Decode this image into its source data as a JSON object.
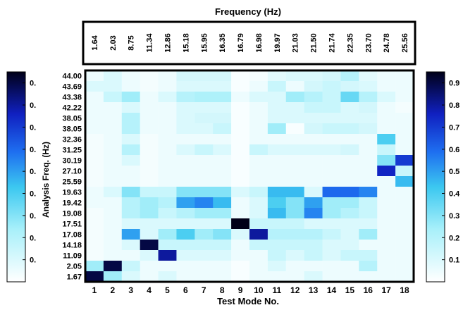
{
  "chart_data": {
    "type": "heatmap",
    "title": "Frequency (Hz)",
    "xlabel": "Test Mode No.",
    "ylabel": "Analysis Freq. (Hz)",
    "x_categories": [
      "1",
      "2",
      "3",
      "4",
      "5",
      "6",
      "7",
      "8",
      "9",
      "10",
      "11",
      "12",
      "13",
      "14",
      "15",
      "16",
      "17",
      "18"
    ],
    "top_categories": [
      "1.64",
      "2.03",
      "8.75",
      "11.34",
      "12.86",
      "15.18",
      "15.95",
      "16.35",
      "16.79",
      "16.98",
      "19.97",
      "21.03",
      "21.50",
      "21.74",
      "22.35",
      "23.70",
      "24.78",
      "25.56"
    ],
    "y_categories": [
      "44.00",
      "43.69",
      "43.38",
      "42.22",
      "38.05",
      "38.05",
      "32.36",
      "31.25",
      "30.19",
      "27.10",
      "25.59",
      "19.63",
      "19.42",
      "19.08",
      "17.51",
      "17.08",
      "14.18",
      "11.09",
      "2.05",
      "1.67"
    ],
    "colorbar_right": {
      "ticks": [
        "0.1",
        "0.2",
        "0.3",
        "0.4",
        "0.5",
        "0.6",
        "0.7",
        "0.8",
        "0.9"
      ],
      "range": [
        0,
        0.95
      ]
    },
    "colorbar_left": {
      "ticks": [
        "0.",
        "0.",
        "0.",
        "0.",
        "0.",
        "0.",
        "0.",
        "0.",
        "0."
      ]
    },
    "values": [
      [
        0.05,
        0.1,
        0.05,
        0.03,
        0.05,
        0.12,
        0.12,
        0.12,
        0.02,
        0.03,
        0.08,
        0.1,
        0.1,
        0.12,
        0.2,
        0.08,
        0.05,
        0.05
      ],
      [
        0.1,
        0.1,
        0.05,
        0.03,
        0.05,
        0.1,
        0.1,
        0.1,
        0.02,
        0.05,
        0.15,
        0.05,
        0.12,
        0.15,
        0.12,
        0.1,
        0.05,
        0.05
      ],
      [
        0.05,
        0.15,
        0.25,
        0.05,
        0.1,
        0.2,
        0.22,
        0.22,
        0.05,
        0.1,
        0.1,
        0.25,
        0.2,
        0.15,
        0.35,
        0.2,
        0.1,
        0.05
      ],
      [
        0.05,
        0.05,
        0.1,
        0.05,
        0.05,
        0.1,
        0.1,
        0.1,
        0.02,
        0.05,
        0.1,
        0.1,
        0.15,
        0.15,
        0.1,
        0.12,
        0.05,
        0.03
      ],
      [
        0.05,
        0.05,
        0.2,
        0.05,
        0.05,
        0.1,
        0.12,
        0.12,
        0.02,
        0.05,
        0.1,
        0.1,
        0.1,
        0.1,
        0.1,
        0.1,
        0.05,
        0.05
      ],
      [
        0.05,
        0.05,
        0.2,
        0.05,
        0.05,
        0.1,
        0.1,
        0.15,
        0.02,
        0.05,
        0.25,
        0.02,
        0.12,
        0.15,
        0.15,
        0.12,
        0.05,
        0.05
      ],
      [
        0.03,
        0.05,
        0.1,
        0.03,
        0.05,
        0.05,
        0.05,
        0.05,
        0.02,
        0.05,
        0.05,
        0.05,
        0.05,
        0.05,
        0.05,
        0.05,
        0.4,
        0.05
      ],
      [
        0.03,
        0.05,
        0.2,
        0.03,
        0.05,
        0.1,
        0.15,
        0.1,
        0.02,
        0.15,
        0.1,
        0.1,
        0.1,
        0.1,
        0.12,
        0.05,
        0.15,
        0.05
      ],
      [
        0.03,
        0.05,
        0.1,
        0.03,
        0.05,
        0.05,
        0.05,
        0.05,
        0.02,
        0.05,
        0.05,
        0.05,
        0.05,
        0.05,
        0.05,
        0.05,
        0.3,
        0.7
      ],
      [
        0.03,
        0.05,
        0.05,
        0.03,
        0.05,
        0.05,
        0.05,
        0.05,
        0.02,
        0.05,
        0.05,
        0.05,
        0.05,
        0.05,
        0.05,
        0.05,
        0.75,
        0.15
      ],
      [
        0.03,
        0.05,
        0.05,
        0.03,
        0.05,
        0.05,
        0.05,
        0.05,
        0.02,
        0.05,
        0.05,
        0.05,
        0.05,
        0.05,
        0.05,
        0.05,
        0.05,
        0.45
      ],
      [
        0.05,
        0.1,
        0.3,
        0.15,
        0.15,
        0.3,
        0.3,
        0.3,
        0.1,
        0.15,
        0.45,
        0.45,
        0.1,
        0.6,
        0.6,
        0.55,
        0.05,
        0.05
      ],
      [
        0.05,
        0.05,
        0.2,
        0.25,
        0.2,
        0.5,
        0.55,
        0.45,
        0.05,
        0.1,
        0.4,
        0.3,
        0.5,
        0.25,
        0.25,
        0.15,
        0.05,
        0.05
      ],
      [
        0.03,
        0.05,
        0.2,
        0.25,
        0.15,
        0.2,
        0.25,
        0.25,
        0.05,
        0.1,
        0.45,
        0.3,
        0.55,
        0.25,
        0.2,
        0.15,
        0.05,
        0.05
      ],
      [
        0.03,
        0.05,
        0.1,
        0.1,
        0.1,
        0.1,
        0.1,
        0.1,
        0.95,
        0.15,
        0.15,
        0.15,
        0.1,
        0.1,
        0.1,
        0.1,
        0.05,
        0.05
      ],
      [
        0.03,
        0.05,
        0.5,
        0.1,
        0.25,
        0.4,
        0.25,
        0.3,
        0.1,
        0.8,
        0.2,
        0.2,
        0.2,
        0.15,
        0.1,
        0.25,
        0.05,
        0.05
      ],
      [
        0.03,
        0.05,
        0.1,
        0.9,
        0.15,
        0.15,
        0.15,
        0.15,
        0.05,
        0.15,
        0.15,
        0.15,
        0.15,
        0.1,
        0.1,
        0.05,
        0.05,
        0.05
      ],
      [
        0.03,
        0.05,
        0.05,
        0.1,
        0.8,
        0.1,
        0.1,
        0.1,
        0.05,
        0.05,
        0.15,
        0.1,
        0.15,
        0.1,
        0.15,
        0.15,
        0.05,
        0.05
      ],
      [
        0.25,
        0.9,
        0.15,
        0.05,
        0.05,
        0.05,
        0.05,
        0.05,
        0.02,
        0.05,
        0.1,
        0.05,
        0.05,
        0.05,
        0.05,
        0.2,
        0.05,
        0.05
      ],
      [
        0.9,
        0.25,
        0.1,
        0.05,
        0.1,
        0.05,
        0.05,
        0.05,
        0.02,
        0.05,
        0.05,
        0.05,
        0.1,
        0.05,
        0.05,
        0.05,
        0.05,
        0.05
      ]
    ]
  }
}
